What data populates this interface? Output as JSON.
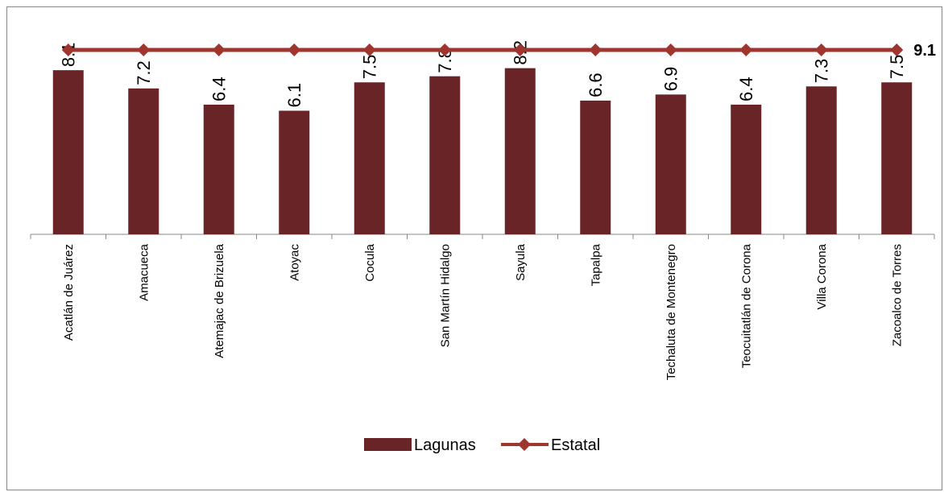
{
  "chart_data": {
    "type": "bar",
    "categories": [
      "Acatlán de Juárez",
      "Amacueca",
      "Atemajac de Brizuela",
      "Atoyac",
      "Cocula",
      "San Martín Hidalgo",
      "Sayula",
      "Tapalpa",
      "Techaluta de Montenegro",
      "Teocuitatlán de Corona",
      "Villa Corona",
      "Zacoalco de Torres"
    ],
    "series": [
      {
        "name": "Lagunas",
        "kind": "bar",
        "color": "#692427",
        "values": [
          8.1,
          7.2,
          6.4,
          6.1,
          7.5,
          7.8,
          8.2,
          6.6,
          6.9,
          6.4,
          7.3,
          7.5
        ],
        "labels": [
          "8.1",
          "7.2",
          "6.4",
          "6.1",
          "7.5",
          "7.8",
          "8.2",
          "6.6",
          "6.9",
          "6.4",
          "7.3",
          "7.5"
        ]
      },
      {
        "name": "Estatal",
        "kind": "line",
        "color": "#A0342F",
        "values": [
          9.1,
          9.1,
          9.1,
          9.1,
          9.1,
          9.1,
          9.1,
          9.1,
          9.1,
          9.1,
          9.1,
          9.1
        ],
        "end_label": "9.1"
      }
    ],
    "ylim": [
      0,
      9.1
    ],
    "grid": false,
    "legend_position": "bottom"
  }
}
